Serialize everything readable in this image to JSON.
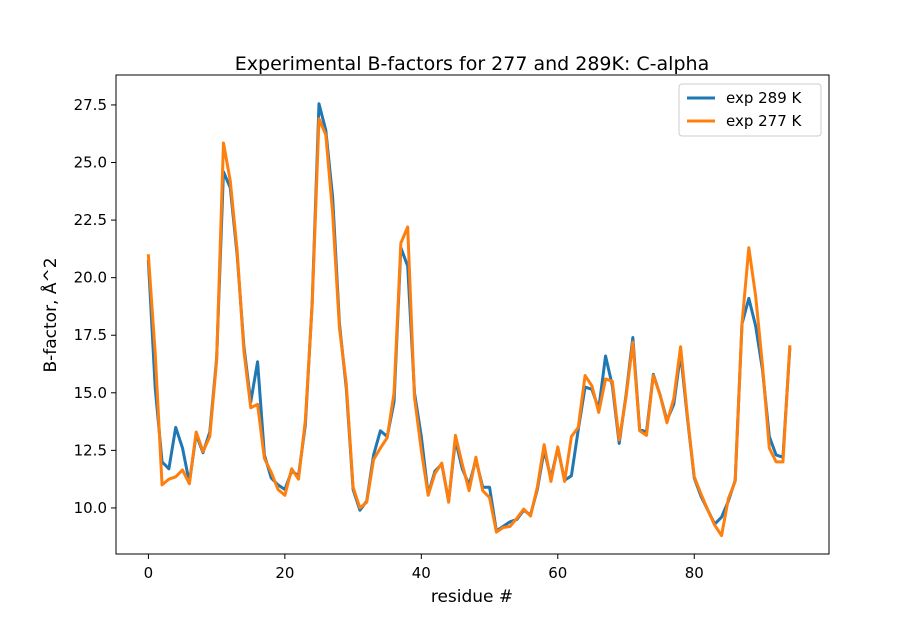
{
  "chart_data": {
    "type": "line",
    "title": "Experimental B-factors for 277 and 289K: C-alpha",
    "xlabel": "residue #",
    "ylabel": "B-factor, Å^2",
    "xlim": [
      -4.75,
      99.75
    ],
    "ylim": [
      8.0,
      28.8
    ],
    "xticks": [
      0,
      20,
      40,
      60,
      80
    ],
    "xtick_labels": [
      "0",
      "20",
      "40",
      "60",
      "80"
    ],
    "yticks": [
      10.0,
      12.5,
      15.0,
      17.5,
      20.0,
      22.5,
      25.0,
      27.5
    ],
    "ytick_labels": [
      "10.0",
      "12.5",
      "15.0",
      "17.5",
      "20.0",
      "22.5",
      "25.0",
      "27.5"
    ],
    "grid": false,
    "legend_position": "top-right",
    "series": [
      {
        "name": "exp 289 K",
        "color": "#1f77b4",
        "x": [
          0,
          1,
          2,
          3,
          4,
          5,
          6,
          7,
          8,
          9,
          10,
          11,
          12,
          13,
          14,
          15,
          16,
          17,
          18,
          19,
          20,
          21,
          22,
          23,
          24,
          25,
          26,
          27,
          28,
          29,
          30,
          31,
          32,
          33,
          34,
          35,
          36,
          37,
          38,
          39,
          40,
          41,
          42,
          43,
          44,
          45,
          46,
          47,
          48,
          49,
          50,
          51,
          52,
          53,
          54,
          55,
          56,
          57,
          58,
          59,
          60,
          61,
          62,
          63,
          64,
          65,
          66,
          67,
          68,
          69,
          70,
          71,
          72,
          73,
          74,
          75,
          76,
          77,
          78,
          79,
          80,
          81,
          82,
          83,
          84,
          85,
          86,
          87,
          88,
          89,
          90,
          91,
          92,
          93,
          94
        ],
        "values": [
          20.7,
          15.2,
          12.0,
          11.7,
          13.5,
          12.6,
          11.1,
          13.2,
          12.4,
          13.3,
          16.5,
          24.6,
          23.9,
          21.0,
          17.0,
          14.6,
          16.35,
          12.3,
          11.3,
          11.0,
          10.8,
          11.6,
          11.4,
          13.6,
          18.9,
          27.55,
          26.4,
          23.5,
          18.0,
          15.2,
          10.8,
          9.9,
          10.3,
          12.3,
          13.35,
          13.1,
          14.6,
          21.3,
          20.5,
          15.0,
          13.1,
          10.6,
          11.6,
          11.9,
          10.3,
          12.95,
          11.7,
          11.0,
          12.1,
          10.9,
          10.9,
          9.0,
          9.2,
          9.4,
          9.5,
          9.9,
          9.7,
          10.8,
          12.5,
          11.3,
          12.6,
          11.2,
          11.4,
          13.4,
          15.25,
          15.15,
          14.3,
          16.6,
          15.3,
          12.8,
          14.9,
          17.4,
          13.4,
          13.3,
          15.8,
          14.9,
          13.8,
          14.5,
          16.7,
          13.9,
          11.3,
          10.5,
          9.9,
          9.3,
          9.6,
          10.3,
          11.2,
          18.0,
          19.1,
          17.9,
          16.0,
          13.1,
          12.3,
          12.2,
          16.9
        ]
      },
      {
        "name": "exp 277 K",
        "color": "#ff7f0e",
        "x": [
          0,
          1,
          2,
          3,
          4,
          5,
          6,
          7,
          8,
          9,
          10,
          11,
          12,
          13,
          14,
          15,
          16,
          17,
          18,
          19,
          20,
          21,
          22,
          23,
          24,
          25,
          26,
          27,
          28,
          29,
          30,
          31,
          32,
          33,
          34,
          35,
          36,
          37,
          38,
          39,
          40,
          41,
          42,
          43,
          44,
          45,
          46,
          47,
          48,
          49,
          50,
          51,
          52,
          53,
          54,
          55,
          56,
          57,
          58,
          59,
          60,
          61,
          62,
          63,
          64,
          65,
          66,
          67,
          68,
          69,
          70,
          71,
          72,
          73,
          74,
          75,
          76,
          77,
          78,
          79,
          80,
          81,
          82,
          83,
          84,
          85,
          86,
          87,
          88,
          89,
          90,
          91,
          92,
          93,
          94
        ],
        "values": [
          20.95,
          16.7,
          11.0,
          11.25,
          11.35,
          11.65,
          11.05,
          13.3,
          12.45,
          13.1,
          16.4,
          25.85,
          24.2,
          21.2,
          16.8,
          14.35,
          14.5,
          12.15,
          11.55,
          10.8,
          10.55,
          11.7,
          11.25,
          13.8,
          18.8,
          26.9,
          26.2,
          22.8,
          17.8,
          15.4,
          10.9,
          10.0,
          10.25,
          12.1,
          12.6,
          13.05,
          15.0,
          21.5,
          22.2,
          14.8,
          12.5,
          10.55,
          11.5,
          11.95,
          10.25,
          13.15,
          11.9,
          10.75,
          12.2,
          10.75,
          10.45,
          8.95,
          9.15,
          9.2,
          9.55,
          9.95,
          9.65,
          10.9,
          12.75,
          11.15,
          12.65,
          11.15,
          13.1,
          13.5,
          15.75,
          15.3,
          14.15,
          15.6,
          15.5,
          12.95,
          14.8,
          17.2,
          13.35,
          13.15,
          15.75,
          14.9,
          13.7,
          14.75,
          17.0,
          14.0,
          11.35,
          10.6,
          9.9,
          9.25,
          8.8,
          10.4,
          11.15,
          18.0,
          21.3,
          19.2,
          16.2,
          12.6,
          12.0,
          12.0,
          17.0
        ]
      }
    ]
  }
}
